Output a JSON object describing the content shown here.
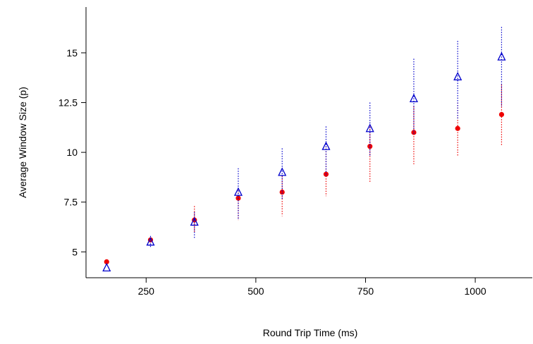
{
  "chart_data": {
    "type": "scatter",
    "title": "",
    "xlabel": "Round Trip Time (ms)",
    "ylabel": "Average Window Size (p)",
    "xlim": [
      113,
      1130
    ],
    "ylim": [
      3.7,
      17.3
    ],
    "x_ticks": [
      250,
      500,
      750,
      1000
    ],
    "x_tick_labels": [
      "250",
      "500",
      "750",
      "1000"
    ],
    "y_ticks": [
      5,
      7.5,
      10,
      12.5,
      15
    ],
    "y_tick_labels": [
      "5",
      "7.5",
      "10",
      "12.5",
      "15"
    ],
    "grid": false,
    "legend": "none",
    "series": [
      {
        "marker": "filled-circle",
        "color": "#ee0000",
        "points": [
          {
            "x": 160,
            "y": 4.5,
            "lo": 4.5,
            "hi": 4.5
          },
          {
            "x": 260,
            "y": 5.6,
            "lo": 5.6,
            "hi": 5.6
          },
          {
            "x": 360,
            "y": 6.6,
            "lo": 6.0,
            "hi": 7.3
          },
          {
            "x": 460,
            "y": 7.7,
            "lo": 6.6,
            "hi": 8.1
          },
          {
            "x": 560,
            "y": 8.0,
            "lo": 6.8,
            "hi": 8.8
          },
          {
            "x": 660,
            "y": 8.9,
            "lo": 7.8,
            "hi": 10.3
          },
          {
            "x": 760,
            "y": 10.3,
            "lo": 8.5,
            "hi": 11.3
          },
          {
            "x": 860,
            "y": 11.0,
            "lo": 9.4,
            "hi": 12.3
          },
          {
            "x": 960,
            "y": 11.2,
            "lo": 9.8,
            "hi": 12.5
          },
          {
            "x": 1060,
            "y": 11.9,
            "lo": 10.3,
            "hi": 13.4
          }
        ]
      },
      {
        "marker": "open-triangle",
        "color": "#0000cc",
        "points": [
          {
            "x": 160,
            "y": 4.2,
            "lo": 4.2,
            "hi": 4.2
          },
          {
            "x": 260,
            "y": 5.5,
            "lo": 5.2,
            "hi": 5.8
          },
          {
            "x": 360,
            "y": 6.5,
            "lo": 5.7,
            "hi": 7.0
          },
          {
            "x": 460,
            "y": 8.0,
            "lo": 6.6,
            "hi": 9.2
          },
          {
            "x": 560,
            "y": 9.0,
            "lo": 7.6,
            "hi": 10.2
          },
          {
            "x": 660,
            "y": 10.3,
            "lo": 8.8,
            "hi": 11.3
          },
          {
            "x": 760,
            "y": 11.2,
            "lo": 9.8,
            "hi": 12.5
          },
          {
            "x": 860,
            "y": 12.7,
            "lo": 10.9,
            "hi": 14.7
          },
          {
            "x": 960,
            "y": 13.8,
            "lo": 11.7,
            "hi": 15.6
          },
          {
            "x": 1060,
            "y": 14.8,
            "lo": 12.3,
            "hi": 16.3
          }
        ]
      }
    ]
  }
}
